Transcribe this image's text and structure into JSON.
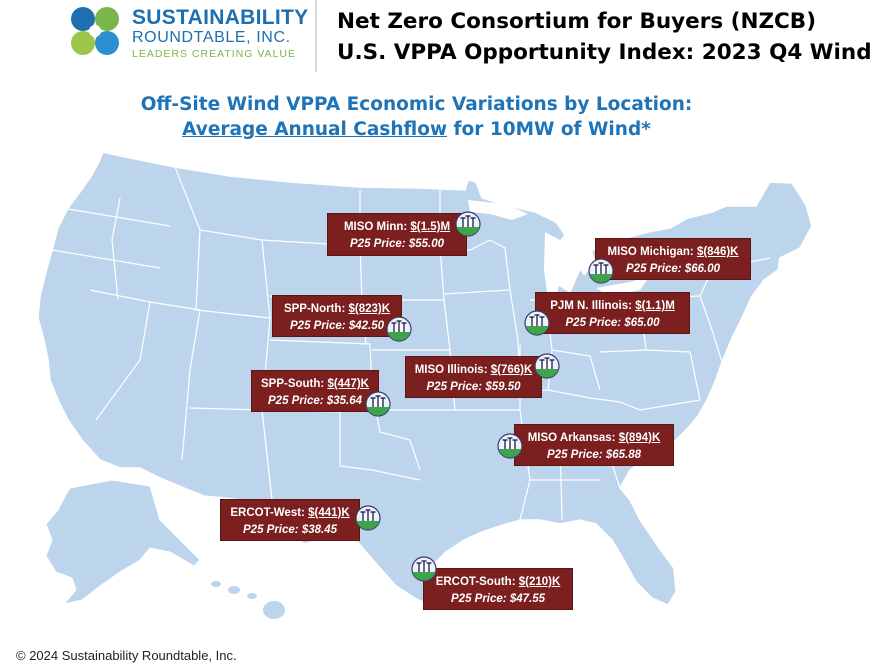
{
  "logo": {
    "line1": "SUSTAINABILITY",
    "line2": "ROUNDTABLE, INC.",
    "line3": "LEADERS CREATING VALUE",
    "colors": [
      "#1e6fb0",
      "#7ab648",
      "#2b8fd0",
      "#9cc54a"
    ]
  },
  "header": {
    "title_line1": "Net Zero Consortium for Buyers (NZCB)",
    "title_line2": "U.S. VPPA Opportunity Index: 2023 Q4 Wind"
  },
  "subtitle": {
    "line1": "Off-Site Wind VPPA Economic Variations by Location:",
    "line2_underlined": "Average Annual Cashflow",
    "line2_rest": " for 10MW of Wind*"
  },
  "map": {
    "land_color": "#bcd5ec",
    "border_color": "#ffffff",
    "label_bg": "#7b1f1f",
    "marker_icon": "wind-turbine-icon"
  },
  "regions": [
    {
      "name": "MISO Minn:",
      "cashflow": "$(1.5)M",
      "price": "P25 Price: $55.00"
    },
    {
      "name": "MISO Michigan:",
      "cashflow": "$(846)K",
      "price": "P25 Price: $66.00"
    },
    {
      "name": "SPP-North:",
      "cashflow": "$(823)K",
      "price": "P25 Price: $42.50"
    },
    {
      "name": "PJM N. Illinois:",
      "cashflow": "$(1.1)M",
      "price": "P25 Price: $65.00"
    },
    {
      "name": "MISO Illinois:",
      "cashflow": "$(766)K",
      "price": "P25 Price: $59.50"
    },
    {
      "name": "SPP-South:",
      "cashflow": "$(447)K",
      "price": "P25 Price: $35.64"
    },
    {
      "name": "MISO Arkansas:",
      "cashflow": "$(894)K",
      "price": "P25 Price: $65.88"
    },
    {
      "name": "ERCOT-West:",
      "cashflow": "$(441)K",
      "price": "P25 Price: $38.45"
    },
    {
      "name": "ERCOT-South:",
      "cashflow": "$(210)K",
      "price": "P25 Price: $47.55"
    }
  ],
  "footer": {
    "copyright": "© 2024 Sustainability Roundtable, Inc."
  }
}
